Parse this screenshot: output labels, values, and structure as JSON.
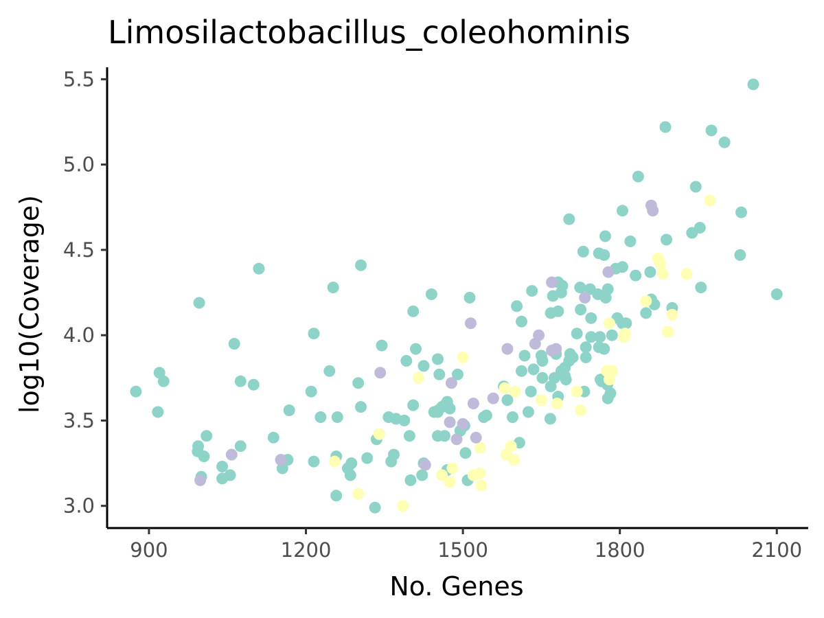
{
  "chart_data": {
    "type": "scatter",
    "title": "Limosilactobacillus_coleohominis",
    "xlabel": "No. Genes",
    "ylabel": "log10(Coverage)",
    "xlim": [
      820,
      2160
    ],
    "ylim": [
      2.87,
      5.57
    ],
    "x_ticks": [
      900,
      1200,
      1500,
      1800,
      2100
    ],
    "y_ticks": [
      3.0,
      3.5,
      4.0,
      4.5,
      5.0,
      5.5
    ],
    "x_tick_labels": [
      "900",
      "1200",
      "1500",
      "1800",
      "2100"
    ],
    "y_tick_labels": [
      "3.0",
      "3.5",
      "4.0",
      "4.5",
      "5.0",
      "5.5"
    ],
    "grid": false,
    "legend": "none",
    "series": [
      {
        "color": "#8dd3c7",
        "points": [
          [
            2055,
            5.47
          ],
          [
            1887,
            5.22
          ],
          [
            1975,
            5.2
          ],
          [
            2000,
            5.13
          ],
          [
            1835,
            4.93
          ],
          [
            1945,
            4.87
          ],
          [
            1805,
            4.73
          ],
          [
            2032,
            4.72
          ],
          [
            1703,
            4.68
          ],
          [
            1953,
            4.63
          ],
          [
            1938,
            4.6
          ],
          [
            1772,
            4.58
          ],
          [
            1889,
            4.56
          ],
          [
            1820,
            4.55
          ],
          [
            1730,
            4.49
          ],
          [
            1760,
            4.48
          ],
          [
            1770,
            4.47
          ],
          [
            2030,
            4.47
          ],
          [
            1110,
            4.39
          ],
          [
            1305,
            4.41
          ],
          [
            1805,
            4.4
          ],
          [
            1792,
            4.39
          ],
          [
            1858,
            4.37
          ],
          [
            1830,
            4.35
          ],
          [
            1252,
            4.28
          ],
          [
            1682,
            4.31
          ],
          [
            1690,
            4.29
          ],
          [
            1724,
            4.28
          ],
          [
            1743,
            4.27
          ],
          [
            1777,
            4.27
          ],
          [
            1955,
            4.28
          ],
          [
            1632,
            4.26
          ],
          [
            1688,
            4.25
          ],
          [
            1672,
            4.23
          ],
          [
            1758,
            4.24
          ],
          [
            1773,
            4.22
          ],
          [
            2100,
            4.24
          ],
          [
            1440,
            4.24
          ],
          [
            1513,
            4.22
          ],
          [
            1860,
            4.21
          ],
          [
            996,
            4.19
          ],
          [
            1603,
            4.17
          ],
          [
            1866,
            4.18
          ],
          [
            1900,
            4.16
          ],
          [
            1725,
            4.15
          ],
          [
            1682,
            4.14
          ],
          [
            1850,
            4.13
          ],
          [
            1668,
            4.13
          ],
          [
            1405,
            4.14
          ],
          [
            1745,
            4.1
          ],
          [
            1795,
            4.1
          ],
          [
            1612,
            4.08
          ],
          [
            1805,
            4.07
          ],
          [
            1812,
            4.07
          ],
          [
            1718,
            4.01
          ],
          [
            1215,
            4.01
          ],
          [
            1785,
            4.0
          ],
          [
            1745,
            3.99
          ],
          [
            1762,
            3.99
          ],
          [
            1760,
            3.93
          ],
          [
            1063,
            3.95
          ],
          [
            1345,
            3.94
          ],
          [
            1735,
            3.93
          ],
          [
            1770,
            3.92
          ],
          [
            1410,
            3.92
          ],
          [
            1678,
            3.89
          ],
          [
            1705,
            3.89
          ],
          [
            1650,
            3.88
          ],
          [
            1618,
            3.88
          ],
          [
            1735,
            3.87
          ],
          [
            1710,
            3.87
          ],
          [
            1703,
            3.85
          ],
          [
            1392,
            3.85
          ],
          [
            1652,
            3.85
          ],
          [
            1452,
            3.86
          ],
          [
            1425,
            3.82
          ],
          [
            1695,
            3.81
          ],
          [
            1635,
            3.8
          ],
          [
            1688,
            3.79
          ],
          [
            1612,
            3.79
          ],
          [
            1245,
            3.79
          ],
          [
            920,
            3.78
          ],
          [
            1455,
            3.77
          ],
          [
            1490,
            3.77
          ],
          [
            1695,
            3.76
          ],
          [
            1675,
            3.75
          ],
          [
            1652,
            3.75
          ],
          [
            1697,
            3.74
          ],
          [
            1763,
            3.74
          ],
          [
            1765,
            3.73
          ],
          [
            928,
            3.73
          ],
          [
            1075,
            3.73
          ],
          [
            1300,
            3.72
          ],
          [
            1100,
            3.71
          ],
          [
            1668,
            3.7
          ],
          [
            1776,
            3.71
          ],
          [
            1578,
            3.7
          ],
          [
            875,
            3.67
          ],
          [
            1210,
            3.67
          ],
          [
            1732,
            3.67
          ],
          [
            1782,
            3.66
          ],
          [
            1630,
            3.67
          ],
          [
            1682,
            3.64
          ],
          [
            1777,
            3.63
          ],
          [
            1585,
            3.62
          ],
          [
            1470,
            3.61
          ],
          [
            1465,
            3.59
          ],
          [
            1405,
            3.59
          ],
          [
            1460,
            3.58
          ],
          [
            1475,
            3.57
          ],
          [
            1453,
            3.56
          ],
          [
            1168,
            3.56
          ],
          [
            1305,
            3.58
          ],
          [
            1452,
            3.55
          ],
          [
            1625,
            3.55
          ],
          [
            917,
            3.55
          ],
          [
            1358,
            3.52
          ],
          [
            1372,
            3.51
          ],
          [
            1445,
            3.55
          ],
          [
            1545,
            3.53
          ],
          [
            1540,
            3.52
          ],
          [
            1260,
            3.52
          ],
          [
            1228,
            3.52
          ],
          [
            1595,
            3.52
          ],
          [
            1388,
            3.5
          ],
          [
            1667,
            3.51
          ],
          [
            1503,
            3.47
          ],
          [
            1495,
            3.44
          ],
          [
            1340,
            3.42
          ],
          [
            1452,
            3.41
          ],
          [
            1398,
            3.41
          ],
          [
            1010,
            3.41
          ],
          [
            1138,
            3.4
          ],
          [
            1465,
            3.41
          ],
          [
            1335,
            3.39
          ],
          [
            1608,
            3.37
          ],
          [
            994,
            3.35
          ],
          [
            1075,
            3.35
          ],
          [
            993,
            3.32
          ],
          [
            1505,
            3.31
          ],
          [
            1368,
            3.3
          ],
          [
            1005,
            3.29
          ],
          [
            1258,
            3.29
          ],
          [
            1317,
            3.28
          ],
          [
            1363,
            3.26
          ],
          [
            1165,
            3.27
          ],
          [
            1215,
            3.26
          ],
          [
            1287,
            3.25
          ],
          [
            1425,
            3.25
          ],
          [
            1040,
            3.23
          ],
          [
            1280,
            3.22
          ],
          [
            1155,
            3.22
          ],
          [
            1470,
            3.21
          ],
          [
            1285,
            3.18
          ],
          [
            1422,
            3.18
          ],
          [
            1055,
            3.18
          ],
          [
            1000,
            3.17
          ],
          [
            1040,
            3.16
          ],
          [
            1400,
            3.15
          ],
          [
            1509,
            3.15
          ],
          [
            1258,
            3.06
          ],
          [
            1332,
            2.99
          ]
        ]
      },
      {
        "color": "#ffffb3",
        "points": [
          [
            1972,
            4.79
          ],
          [
            1873,
            4.45
          ],
          [
            1877,
            4.42
          ],
          [
            1882,
            4.36
          ],
          [
            1928,
            4.36
          ],
          [
            1850,
            4.2
          ],
          [
            1900,
            4.12
          ],
          [
            1780,
            4.07
          ],
          [
            1892,
            4.02
          ],
          [
            1810,
            4.01
          ],
          [
            1808,
            3.99
          ],
          [
            1500,
            3.87
          ],
          [
            1775,
            3.79
          ],
          [
            1785,
            3.79
          ],
          [
            1415,
            3.75
          ],
          [
            1780,
            3.74
          ],
          [
            1580,
            3.69
          ],
          [
            1718,
            3.67
          ],
          [
            1600,
            3.67
          ],
          [
            1650,
            3.62
          ],
          [
            1680,
            3.6
          ],
          [
            1725,
            3.56
          ],
          [
            1340,
            3.42
          ],
          [
            1533,
            3.34
          ],
          [
            1592,
            3.35
          ],
          [
            1583,
            3.3
          ],
          [
            1598,
            3.27
          ],
          [
            1255,
            3.26
          ],
          [
            1480,
            3.22
          ],
          [
            1460,
            3.18
          ],
          [
            1532,
            3.19
          ],
          [
            1520,
            3.18
          ],
          [
            1475,
            3.14
          ],
          [
            1535,
            3.12
          ],
          [
            1300,
            3.07
          ],
          [
            1385,
            3.0
          ]
        ]
      },
      {
        "color": "#bebada",
        "points": [
          [
            1860,
            4.76
          ],
          [
            1863,
            4.73
          ],
          [
            1778,
            4.37
          ],
          [
            1670,
            4.31
          ],
          [
            1733,
            4.22
          ],
          [
            1515,
            4.07
          ],
          [
            1645,
            4.0
          ],
          [
            1638,
            3.95
          ],
          [
            1678,
            3.92
          ],
          [
            1670,
            3.91
          ],
          [
            1585,
            3.92
          ],
          [
            1342,
            3.78
          ],
          [
            1478,
            3.72
          ],
          [
            1520,
            3.6
          ],
          [
            1558,
            3.63
          ],
          [
            1475,
            3.49
          ],
          [
            1500,
            3.48
          ],
          [
            1525,
            3.4
          ],
          [
            1488,
            3.39
          ],
          [
            1058,
            3.3
          ],
          [
            1152,
            3.27
          ],
          [
            1428,
            3.24
          ],
          [
            998,
            3.15
          ]
        ]
      }
    ]
  }
}
